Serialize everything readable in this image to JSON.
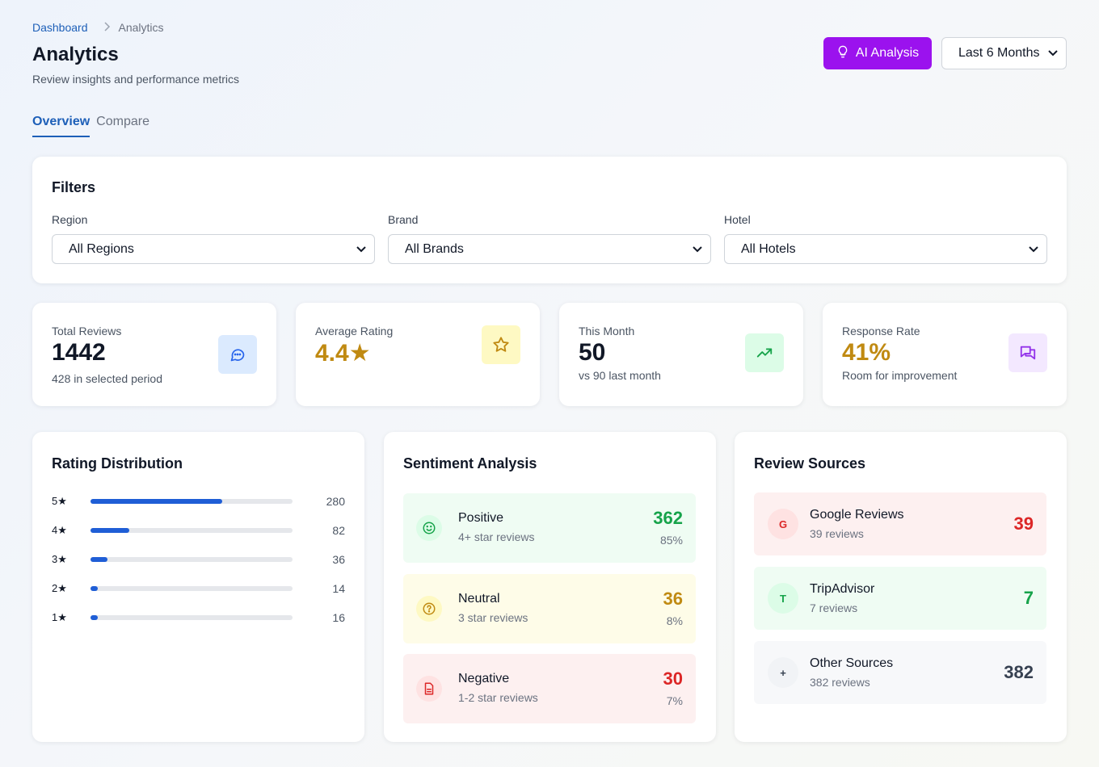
{
  "breadcrumb": {
    "home": "Dashboard",
    "separator": ">",
    "current": "Analytics"
  },
  "header": {
    "title": "Analytics",
    "subtitle": "Review insights and performance metrics",
    "ai_button_label": "AI Analysis",
    "period_value": "Last 6 Months"
  },
  "tabs": [
    {
      "label": "Overview",
      "active": true
    },
    {
      "label": "Compare",
      "active": false
    }
  ],
  "filters": {
    "title": "Filters",
    "region": {
      "label": "Region",
      "value": "All Regions"
    },
    "brand": {
      "label": "Brand",
      "value": "All Brands"
    },
    "hotel": {
      "label": "Hotel",
      "value": "All Hotels"
    }
  },
  "stats": [
    {
      "label": "Total Reviews",
      "value": "1442",
      "sub": "428 in selected period",
      "icon": "chat-bubble-icon",
      "color": "#2563eb"
    },
    {
      "label": "Average Rating",
      "value": "4.4★",
      "sub": "",
      "icon": "star-icon",
      "color": "#c08a12"
    },
    {
      "label": "This Month",
      "value": "50",
      "sub": "vs 90 last month",
      "icon": "trending-up-icon",
      "color": "#16a34a"
    },
    {
      "label": "Response Rate",
      "value": "41%",
      "sub": "Room for improvement",
      "icon": "messages-icon",
      "color": "#9333ea"
    }
  ],
  "rating_distribution": {
    "title": "Rating Distribution",
    "rows": [
      {
        "label": "5★",
        "count": "280",
        "share": 0.653
      },
      {
        "label": "4★",
        "count": "82",
        "share": 0.191
      },
      {
        "label": "3★",
        "count": "36",
        "share": 0.084
      },
      {
        "label": "2★",
        "count": "14",
        "share": 0.033
      },
      {
        "label": "1★",
        "count": "16",
        "share": 0.037
      }
    ]
  },
  "sentiment": {
    "title": "Sentiment Analysis",
    "items": [
      {
        "name": "Positive",
        "desc": "4+ star reviews",
        "value": "362",
        "pct": "85%",
        "icon": "smile-icon",
        "color": "#16a34a",
        "bg": "#effcf3"
      },
      {
        "name": "Neutral",
        "desc": "3 star reviews",
        "value": "36",
        "pct": "8%",
        "icon": "question-icon",
        "color": "#c08a12",
        "bg": "#fefce8"
      },
      {
        "name": "Negative",
        "desc": "1-2 star reviews",
        "value": "30",
        "pct": "7%",
        "icon": "document-icon",
        "color": "#dc2626",
        "bg": "#fdf0f0"
      }
    ]
  },
  "sources": {
    "title": "Review Sources",
    "items": [
      {
        "badge": "G",
        "name": "Google Reviews",
        "desc": "39 reviews",
        "value": "39",
        "color": "#dc2626",
        "bg": "#fdf0f0"
      },
      {
        "badge": "T",
        "name": "TripAdvisor",
        "desc": "7 reviews",
        "value": "7",
        "color": "#16a34a",
        "bg": "#effcf3"
      },
      {
        "badge": "+",
        "name": "Other Sources",
        "desc": "382 reviews",
        "value": "382",
        "color": "#374151",
        "bg": "#f7f8fa"
      }
    ]
  }
}
